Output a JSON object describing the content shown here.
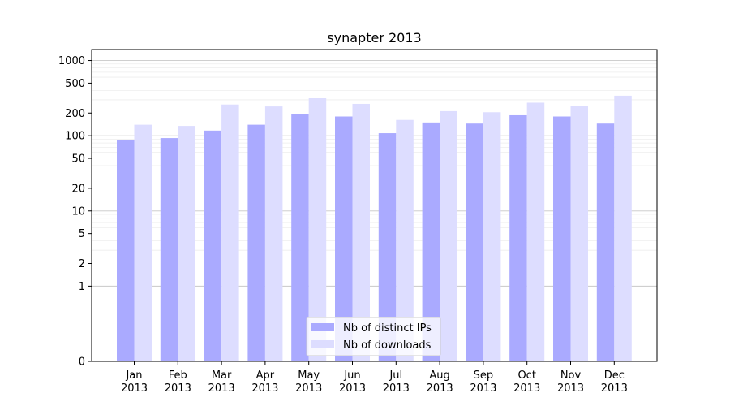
{
  "chart_data": {
    "type": "bar",
    "title": "synapter 2013",
    "xlabel": "",
    "ylabel": "",
    "yscale": "symlog",
    "ylim": [
      0,
      1400
    ],
    "yticks": [
      0,
      1,
      2,
      5,
      10,
      20,
      50,
      100,
      200,
      500,
      1000
    ],
    "ytick_labels": [
      "0",
      "1",
      "2",
      "5",
      "10",
      "20",
      "50",
      "100",
      "200",
      "500",
      "1000"
    ],
    "grid": true,
    "legend_position": "bottom-center",
    "categories": [
      [
        "Jan",
        "2013"
      ],
      [
        "Feb",
        "2013"
      ],
      [
        "Mar",
        "2013"
      ],
      [
        "Apr",
        "2013"
      ],
      [
        "May",
        "2013"
      ],
      [
        "Jun",
        "2013"
      ],
      [
        "Jul",
        "2013"
      ],
      [
        "Aug",
        "2013"
      ],
      [
        "Sep",
        "2013"
      ],
      [
        "Oct",
        "2013"
      ],
      [
        "Nov",
        "2013"
      ],
      [
        "Dec",
        "2013"
      ]
    ],
    "series": [
      {
        "name": "Nb of distinct IPs",
        "color": "#aaaaff",
        "values": [
          88,
          93,
          117,
          140,
          193,
          180,
          108,
          150,
          145,
          187,
          180,
          145
        ]
      },
      {
        "name": "Nb of downloads",
        "color": "#ddddff",
        "values": [
          140,
          135,
          260,
          245,
          315,
          265,
          162,
          212,
          205,
          275,
          248,
          340
        ]
      }
    ]
  }
}
